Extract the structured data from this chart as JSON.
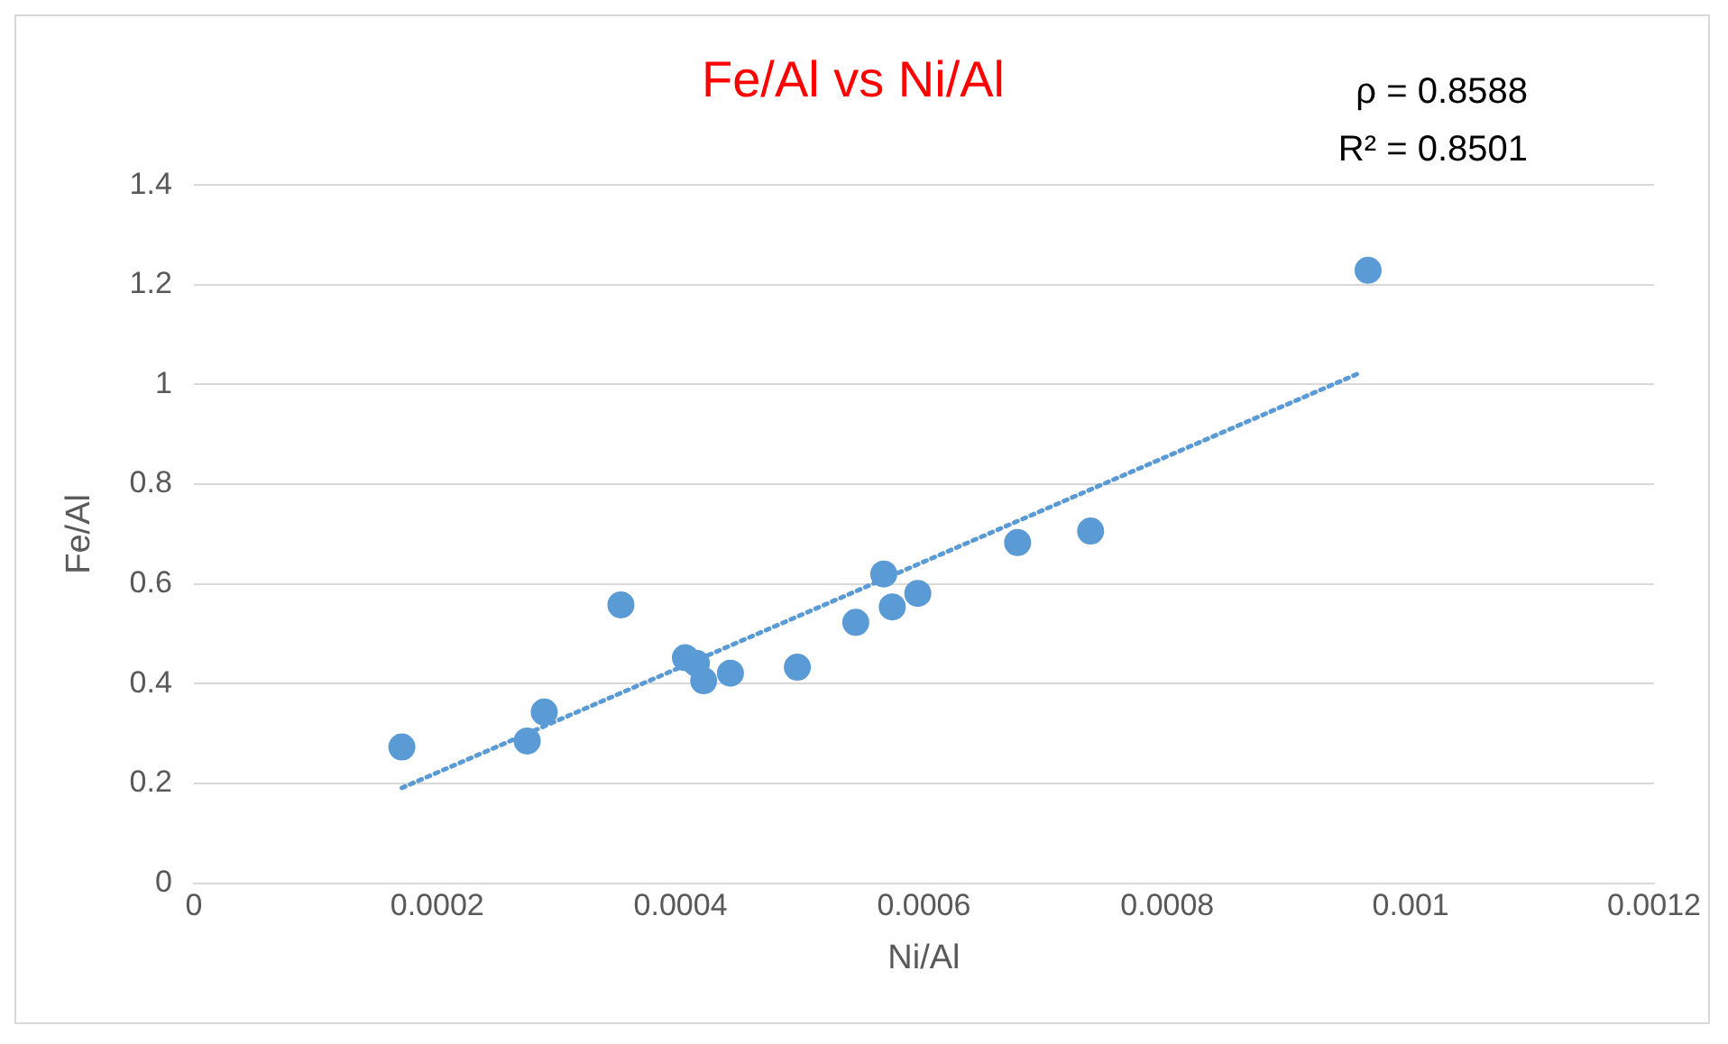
{
  "chart_data": {
    "type": "scatter",
    "title": "Fe/Al vs Ni/Al",
    "xlabel": "Ni/Al",
    "ylabel": "Fe/Al",
    "annotations": [
      "ρ = 0.8588",
      "R² = 0.8501"
    ],
    "xlim": [
      0,
      0.0012
    ],
    "xticks": [
      0,
      0.0002,
      0.0004,
      0.0006,
      0.0008,
      0.001,
      0.0012
    ],
    "ylim": [
      0,
      1.4
    ],
    "yticks": [
      0,
      0.2,
      0.4,
      0.6,
      0.8,
      1,
      1.2,
      1.4
    ],
    "grid": "y",
    "legend": false,
    "marker": "circle",
    "series": [
      {
        "color": "#5b9bd5",
        "x": [
          0.000171,
          0.000274,
          0.000288,
          0.000351,
          0.000404,
          0.000413,
          0.000419,
          0.000441,
          0.000496,
          0.000544,
          0.000567,
          0.000574,
          0.000595,
          0.000677,
          0.000737,
          0.000965
        ],
        "values": [
          0.273,
          0.285,
          0.343,
          0.558,
          0.452,
          0.441,
          0.406,
          0.421,
          0.433,
          0.523,
          0.62,
          0.554,
          0.581,
          0.683,
          0.706,
          1.229
        ]
      },
      {
        "type": "line",
        "color": "#5b9bd5",
        "line_style": "dotted",
        "marker": "none",
        "x": [
          0.000171,
          0.000957
        ],
        "values": [
          0.191,
          1.022
        ]
      }
    ]
  }
}
